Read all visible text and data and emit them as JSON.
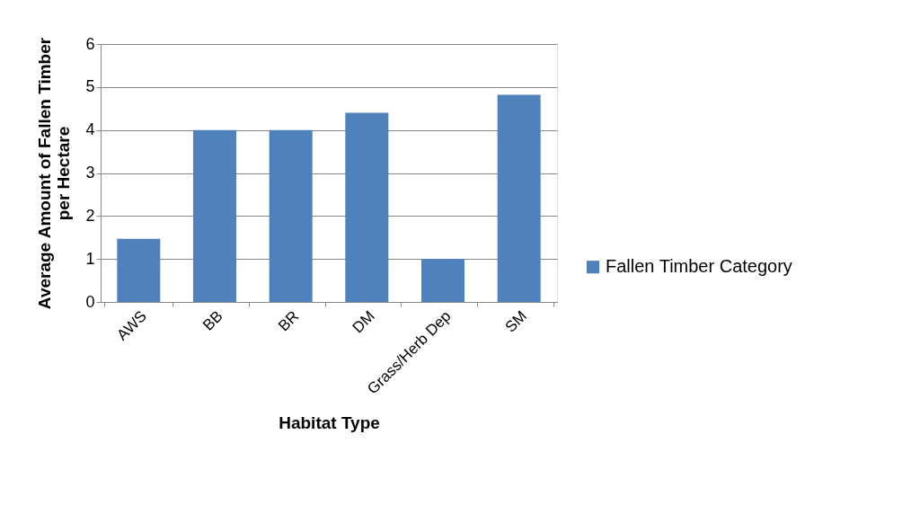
{
  "chart_data": {
    "type": "bar",
    "xlabel": "Habitat Type",
    "ylabel": "Average Amount of Fallen Timber\nper Hectare",
    "categories": [
      "AWS",
      "BB",
      "BR",
      "DM",
      "Grass/Herb Dep",
      "SM"
    ],
    "series": [
      {
        "name": "Fallen Timber  Category",
        "color": "#4f81bd",
        "values": [
          1.47,
          4.0,
          4.0,
          4.4,
          1.0,
          4.82
        ]
      }
    ],
    "ylim": [
      0,
      6
    ],
    "yticks": [
      0,
      1,
      2,
      3,
      4,
      5,
      6
    ],
    "grid": "y",
    "legend": "right"
  }
}
